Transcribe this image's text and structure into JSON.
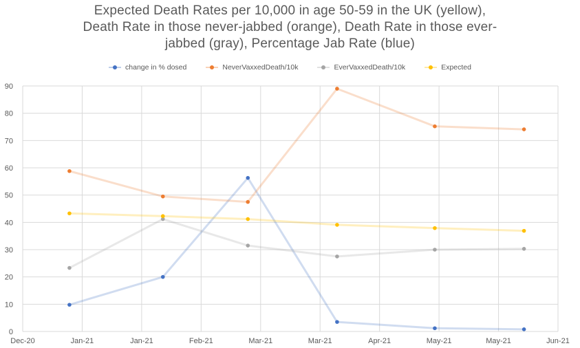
{
  "chart_data": {
    "type": "line",
    "title_lines": [
      "Expected Death Rates per 10,000 in age 50-59 in the UK (yellow),",
      "Death Rate in those never-jabbed (orange), Death Rate in those ever-",
      "jabbed (gray), Percentage Jab Rate (blue)"
    ],
    "x_tick_labels": [
      "Dec-20",
      "Jan-21",
      "Jan-21",
      "Feb-21",
      "Mar-21",
      "Mar-21",
      "Apr-21",
      "May-21",
      "May-21",
      "Jun-21"
    ],
    "x_tick_days": [
      0,
      14,
      28,
      42,
      56,
      70,
      84,
      98,
      112,
      126
    ],
    "x_range_days": [
      0,
      126
    ],
    "ylim": [
      0,
      90
    ],
    "y_ticks": [
      0,
      10,
      20,
      30,
      40,
      50,
      60,
      70,
      80,
      90
    ],
    "grid": true,
    "legend_position": "top",
    "x_days": [
      11,
      33,
      53,
      74,
      97,
      118
    ],
    "series": [
      {
        "name": "change in % dosed",
        "color": "#4472C4",
        "values": [
          9.8,
          20.0,
          56.3,
          3.5,
          1.2,
          0.8
        ]
      },
      {
        "name": "NeverVaxxedDeath/10k",
        "color": "#ED7D31",
        "values": [
          58.8,
          49.5,
          47.5,
          89.0,
          75.2,
          74.1
        ]
      },
      {
        "name": "EverVaxxedDeath/10k",
        "color": "#A5A5A5",
        "values": [
          23.3,
          41.2,
          31.5,
          27.5,
          30.0,
          30.3
        ]
      },
      {
        "name": "Expected",
        "color": "#FFC000",
        "values": [
          43.3,
          42.3,
          41.2,
          39.1,
          37.9,
          36.9
        ]
      }
    ]
  }
}
